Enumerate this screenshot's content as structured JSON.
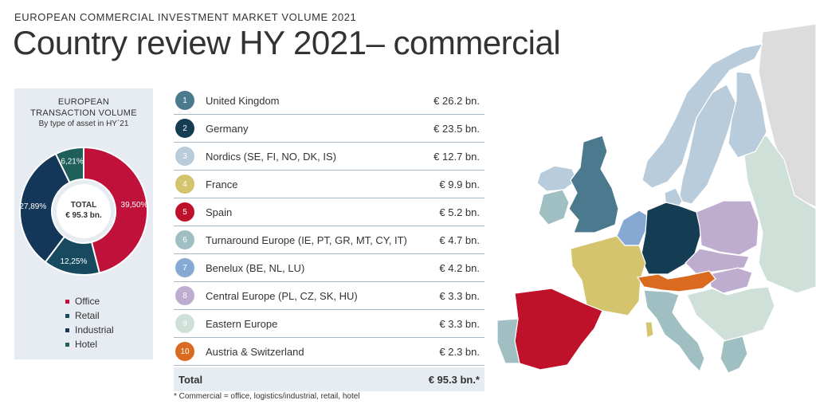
{
  "header": {
    "overline": "EUROPEAN COMMERCIAL INVESTMENT MARKET VOLUME 2021",
    "title": "Country review HY 2021– commercial"
  },
  "donut_card": {
    "line1": "EUROPEAN",
    "line2": "TRANSACTION VOLUME",
    "line3": "By type of asset in HY`21",
    "center_line1": "TOTAL",
    "center_line2": "€ 95.3 bn."
  },
  "table": {
    "rows": [
      {
        "num": "1",
        "name": "United Kingdom",
        "value": "€ 26.2 bn.",
        "color": "#4b7a8f"
      },
      {
        "num": "2",
        "name": "Germany",
        "value": "€ 23.5 bn.",
        "color": "#143c52"
      },
      {
        "num": "3",
        "name": "Nordics (SE, FI, NO, DK, IS)",
        "value": "€ 12.7 bn.",
        "color": "#b8ccdc"
      },
      {
        "num": "4",
        "name": "France",
        "value": "€ 9.9 bn.",
        "color": "#d4c46e"
      },
      {
        "num": "5",
        "name": "Spain",
        "value": "€ 5.2 bn.",
        "color": "#c0112a"
      },
      {
        "num": "6",
        "name": "Turnaround Europe (IE, PT, GR, MT, CY, IT)",
        "value": "€ 4.7 bn.",
        "color": "#9fbfc2"
      },
      {
        "num": "7",
        "name": "Benelux (BE, NL, LU)",
        "value": "€ 4.2 bn.",
        "color": "#86a9d3"
      },
      {
        "num": "8",
        "name": "Central Europe (PL, CZ, SK, HU)",
        "value": "€ 3.3 bn.",
        "color": "#bfadd0"
      },
      {
        "num": "9",
        "name": "Eastern Europe",
        "value": "€ 3.3 bn.",
        "color": "#cfe0d8"
      },
      {
        "num": "10",
        "name": "Austria & Switzerland",
        "value": "€ 2.3 bn.",
        "color": "#d96a20"
      }
    ],
    "total_label": "Total",
    "total_value": "€ 95.3 bn.*"
  },
  "footnote": "* Commercial = office, logistics/industrial, retail, hotel",
  "chart_data": {
    "type": "pie",
    "donut": true,
    "unit": "%",
    "slices": [
      {
        "name": "Office",
        "value": 39.5,
        "label": "39,50%",
        "color": "#c0113a"
      },
      {
        "name": "Retail",
        "value": 12.25,
        "label": "12,25%",
        "color": "#174a5e"
      },
      {
        "name": "Industrial",
        "value": 27.89,
        "label": "27,89%",
        "color": "#143658"
      },
      {
        "name": "Hotel",
        "value": 6.21,
        "label": "6,21%",
        "color": "#1e5f5a"
      }
    ],
    "legend_placement": "bottom"
  },
  "map": {
    "regions": [
      {
        "name": "uk",
        "color": "#4b7a8f"
      },
      {
        "name": "ireland",
        "color": "#9fbfc2"
      },
      {
        "name": "norway",
        "color": "#b8ccdc"
      },
      {
        "name": "sweden",
        "color": "#b8ccdc"
      },
      {
        "name": "finland",
        "color": "#b8ccdc"
      },
      {
        "name": "denmark",
        "color": "#b8ccdc"
      },
      {
        "name": "iceland",
        "color": "#b8ccdc"
      },
      {
        "name": "russia",
        "color": "#dcdcdc"
      },
      {
        "name": "baltics-east",
        "color": "#cfe0d8"
      },
      {
        "name": "germany",
        "color": "#143c52"
      },
      {
        "name": "benelux",
        "color": "#86a9d3"
      },
      {
        "name": "france",
        "color": "#d4c46e"
      },
      {
        "name": "spain",
        "color": "#c0112a"
      },
      {
        "name": "portugal",
        "color": "#9fbfc2"
      },
      {
        "name": "italy",
        "color": "#9fbfc2"
      },
      {
        "name": "sardinia",
        "color": "#d4c46e"
      },
      {
        "name": "poland",
        "color": "#bfadd0"
      },
      {
        "name": "czechia-slovakia",
        "color": "#bfadd0"
      },
      {
        "name": "hungary",
        "color": "#bfadd0"
      },
      {
        "name": "austria-switzerland",
        "color": "#d96a20"
      },
      {
        "name": "balkans",
        "color": "#cfe0d8"
      },
      {
        "name": "greece",
        "color": "#9fbfc2"
      }
    ]
  }
}
